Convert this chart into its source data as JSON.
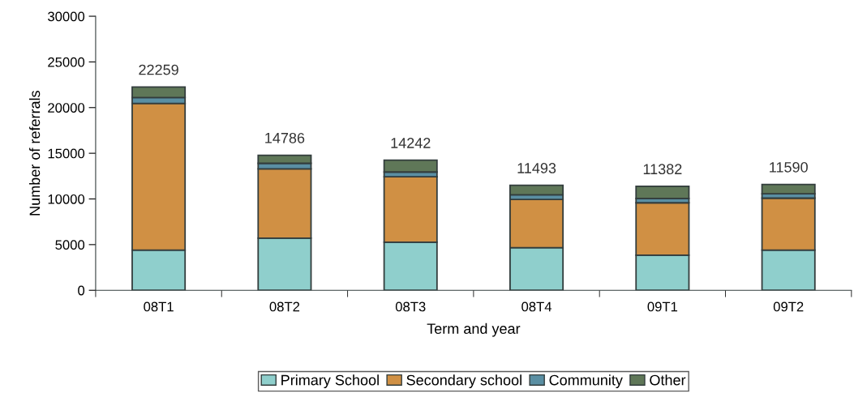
{
  "chart_data": {
    "type": "bar",
    "stacked": true,
    "xlabel": "Term and year",
    "ylabel": "Number of referrals",
    "categories": [
      "08T1",
      "08T2",
      "08T3",
      "08T4",
      "09T1",
      "09T2"
    ],
    "series": [
      {
        "name": "Primary School",
        "color": "#8fcfcc",
        "values": [
          4400,
          5700,
          5270,
          4670,
          3840,
          4400
        ]
      },
      {
        "name": "Secondary school",
        "color": "#d09044",
        "values": [
          16050,
          7600,
          7160,
          5270,
          5740,
          5690
        ]
      },
      {
        "name": "Community",
        "color": "#5a8fa3",
        "values": [
          650,
          600,
          520,
          510,
          480,
          480
        ]
      },
      {
        "name": "Other",
        "color": "#5f7758",
        "values": [
          1159,
          886,
          1292,
          1043,
          1322,
          1020
        ]
      }
    ],
    "totals": [
      "22259",
      "14786",
      "14242",
      "11493",
      "11382",
      "11590"
    ],
    "ylim": [
      0,
      30000
    ],
    "yticks": [
      0,
      5000,
      10000,
      15000,
      20000,
      25000,
      30000
    ],
    "grid": false,
    "legend": "bottom"
  }
}
